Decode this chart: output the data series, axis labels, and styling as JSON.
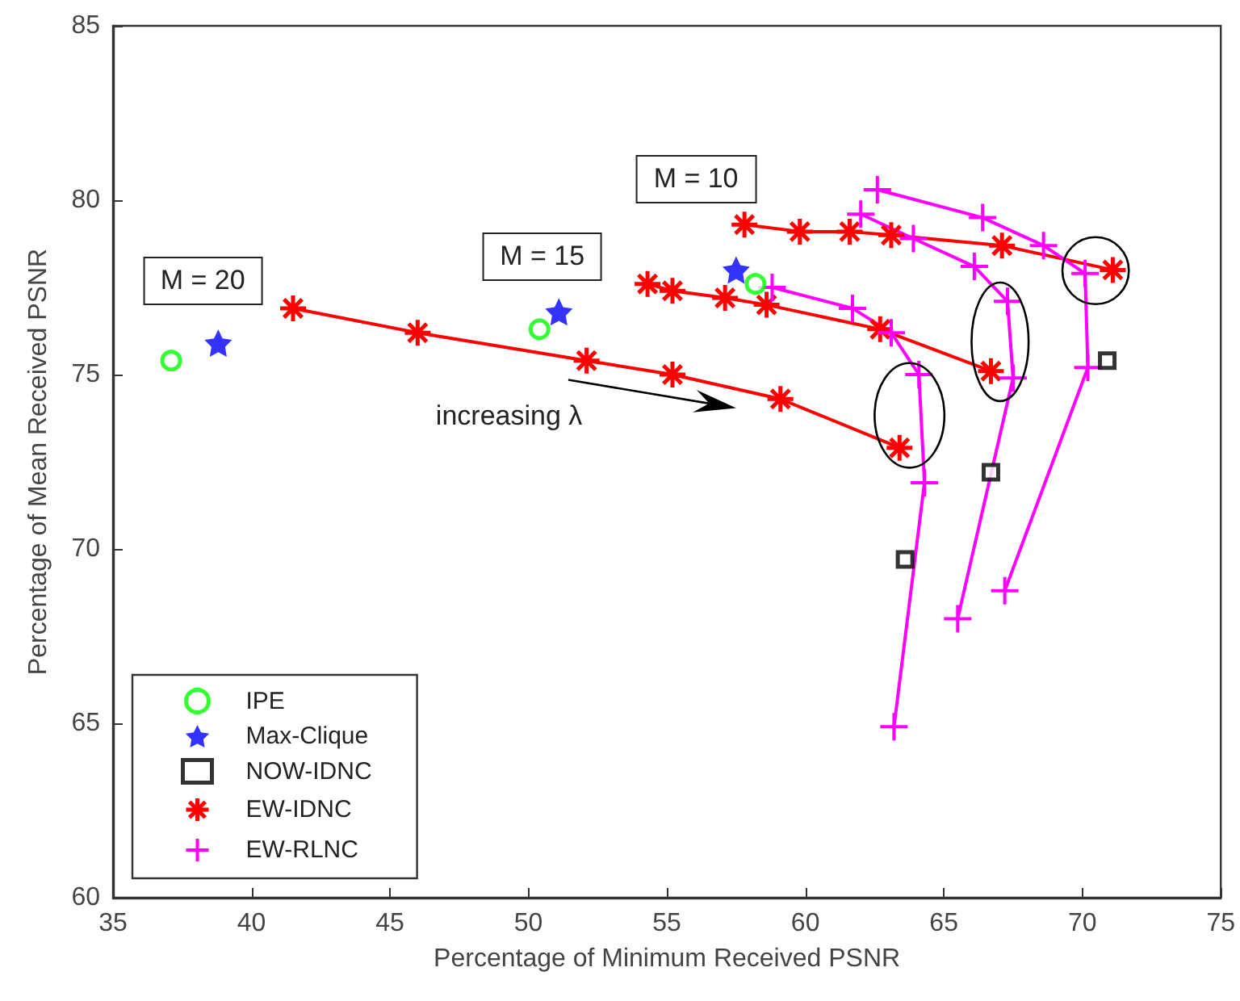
{
  "chart_data": {
    "type": "scatter",
    "xlabel": "Percentage of Minimum Received PSNR",
    "ylabel": "Percentage of Mean Received PSNR",
    "xlim": [
      35,
      75
    ],
    "xticks": [
      35,
      40,
      45,
      50,
      55,
      60,
      65,
      70,
      75
    ],
    "ylim": [
      60,
      85
    ],
    "yticks": [
      60,
      65,
      70,
      75,
      80,
      85
    ],
    "grid": false,
    "legend": "bottom left",
    "annotations": [
      "M = 20",
      "M = 15",
      "M = 10",
      "increasing λ"
    ],
    "series": [
      {
        "name": "IPE",
        "marker": "circle",
        "color": "#00ff00",
        "x": [
          37.1,
          50.4,
          58.2
        ],
        "values": [
          75.4,
          76.3,
          77.6
        ]
      },
      {
        "name": "Max-Clique",
        "marker": "star",
        "color": "#0000ff",
        "x": [
          38.8,
          51.1,
          57.5
        ],
        "values": [
          75.9,
          76.8,
          78.0
        ]
      },
      {
        "name": "NOW-IDNC",
        "marker": "square",
        "color": "#000000",
        "x": [
          63.6,
          66.7,
          70.9
        ],
        "values": [
          69.7,
          72.2,
          75.4
        ]
      },
      {
        "name": "EW-IDNC",
        "type": "line",
        "marker": "cross",
        "color": "#ff0000",
        "x": [
          41.5,
          46.0,
          52.1,
          55.2,
          59.1,
          63.4
        ],
        "values": [
          76.9,
          76.2,
          75.4,
          75.0,
          74.3,
          72.9
        ]
      },
      {
        "type": "line",
        "marker": "cross",
        "color": "#ff0000",
        "x": [
          54.3,
          55.2,
          57.1,
          58.6,
          62.7,
          66.7
        ],
        "values": [
          77.6,
          77.4,
          77.2,
          77.0,
          76.3,
          75.1
        ]
      },
      {
        "type": "line",
        "marker": "cross",
        "color": "#ff0000",
        "x": [
          57.8,
          59.8,
          61.6,
          63.1,
          67.1,
          71.1
        ],
        "values": [
          79.3,
          79.1,
          79.1,
          79.0,
          78.7,
          78.0
        ]
      },
      {
        "name": "EW-RLNC",
        "type": "line",
        "marker": "cross",
        "color": "#ff00ff",
        "x": [
          58.8,
          61.7,
          63.1,
          64.1,
          64.3,
          63.2
        ],
        "values": [
          77.5,
          76.9,
          76.2,
          75.0,
          71.9,
          64.9
        ]
      },
      {
        "type": "line",
        "marker": "cross",
        "color": "#ff00ff",
        "x": [
          62.0,
          63.9,
          66.1,
          67.3,
          67.5,
          65.5
        ],
        "values": [
          79.6,
          78.9,
          78.1,
          77.1,
          74.9,
          68.0
        ]
      },
      {
        "type": "line",
        "marker": "cross",
        "color": "#ff00ff",
        "x": [
          62.6,
          66.4,
          68.6,
          70.1,
          70.2,
          67.2
        ],
        "values": [
          80.3,
          79.5,
          78.7,
          77.9,
          75.2,
          68.8
        ]
      }
    ]
  }
}
